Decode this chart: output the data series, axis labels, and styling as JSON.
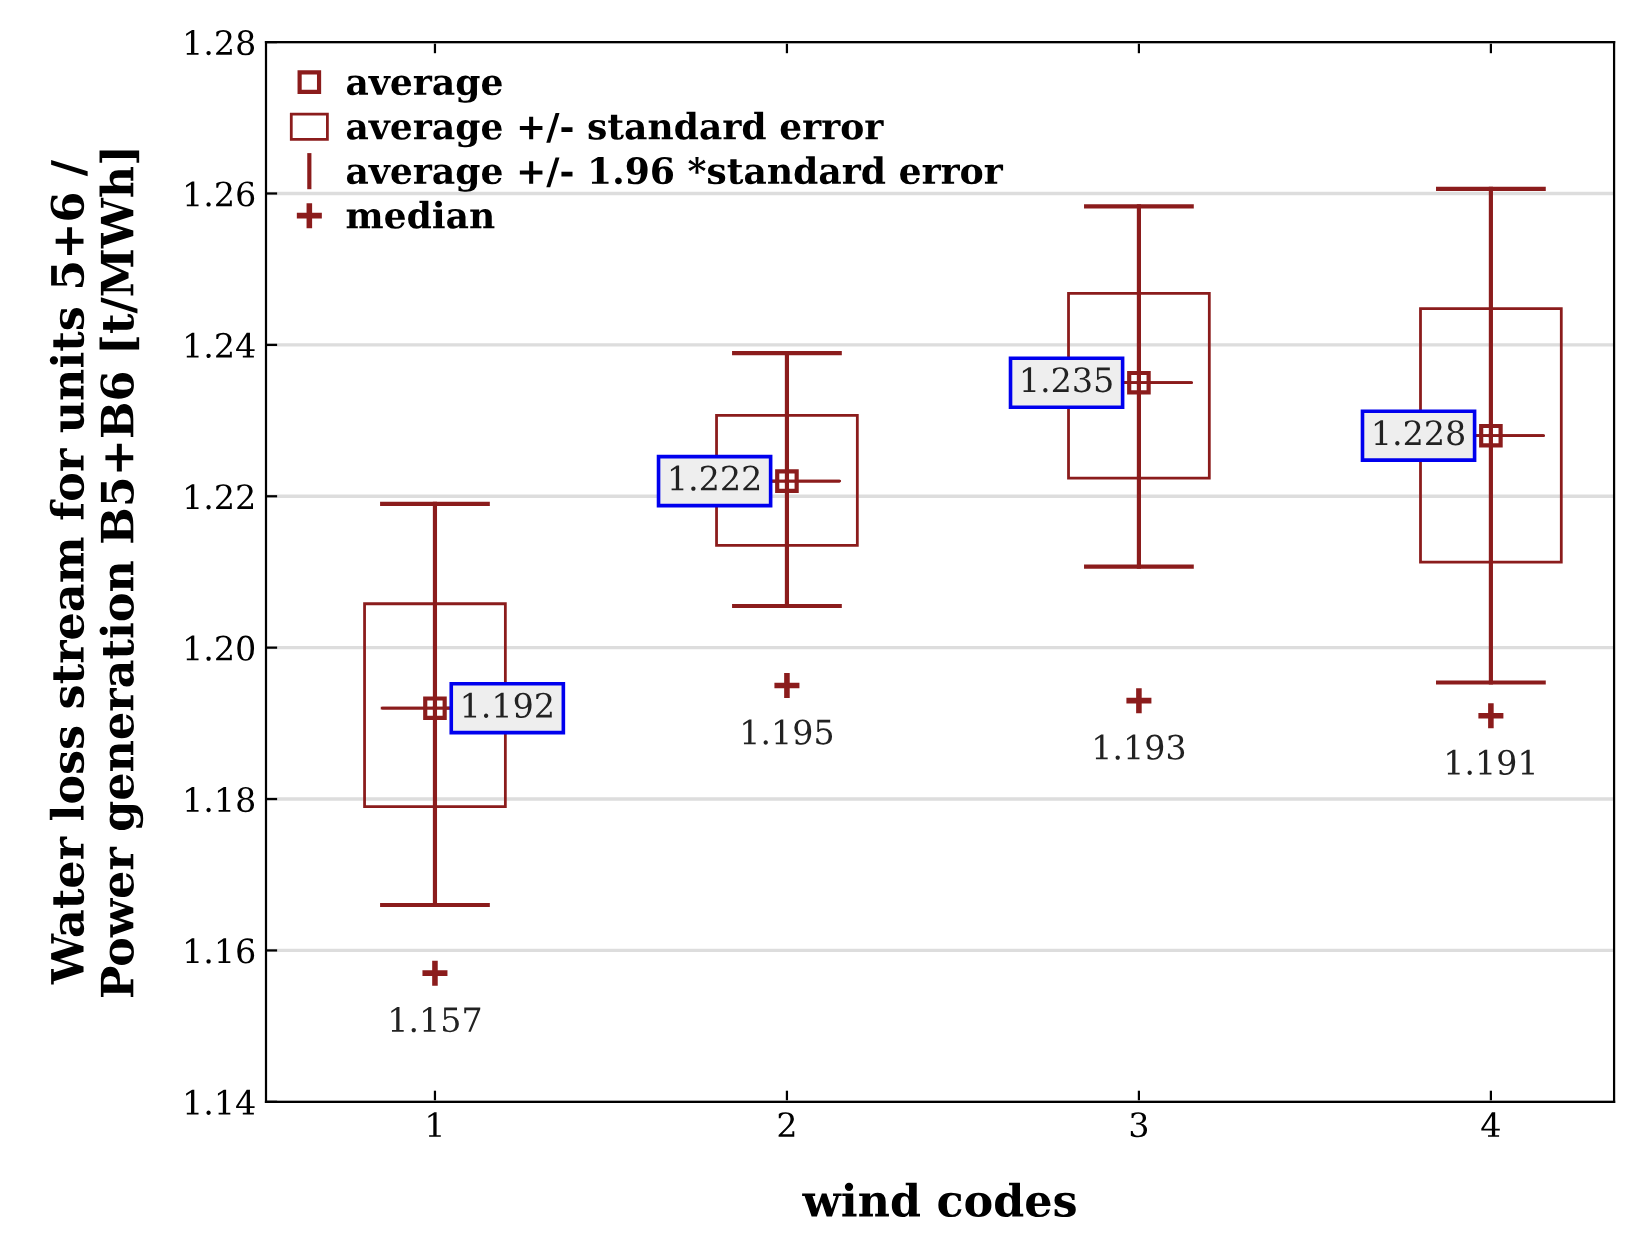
{
  "chart_data": {
    "type": "box",
    "xlabel": "wind codes",
    "ylabel": "Water loss stream for units 5+6 /\nPower generation B5+B6 [t/MWh]",
    "categories": [
      "1",
      "2",
      "3",
      "4"
    ],
    "ylim": [
      1.14,
      1.28
    ],
    "yticks": [
      1.14,
      1.16,
      1.18,
      {
        "value": 1.2,
        "label": "1.20"
      },
      1.22,
      1.24,
      1.26,
      1.28
    ],
    "grid": "y",
    "legend": "top left",
    "series": [
      {
        "name": "average",
        "type": "scatter",
        "marker": "square",
        "color": "#8b1c1c",
        "values": [
          1.192,
          1.222,
          1.235,
          1.228
        ],
        "value_labels": [
          "1.192",
          "1.222",
          "1.235",
          "1.228"
        ]
      },
      {
        "name": "average +/- standard error",
        "type": "bar",
        "color": "#8b1c1c",
        "base": [
          1.179,
          1.2135,
          1.2224,
          1.2113
        ],
        "values": [
          0.0268,
          0.0172,
          0.0244,
          0.0335
        ]
      },
      {
        "name": "average +/- 1.96 *standard error",
        "color": "#8b1c1c",
        "boxes": [
          {
            "low": 1.166,
            "q1": 1.192,
            "median": 1.192,
            "q3": 1.192,
            "high": 1.219
          },
          {
            "low": 1.2055,
            "q1": 1.222,
            "median": 1.222,
            "q3": 1.222,
            "high": 1.2389
          },
          {
            "low": 1.2107,
            "q1": 1.235,
            "median": 1.235,
            "q3": 1.235,
            "high": 1.2583
          },
          {
            "low": 1.1954,
            "q1": 1.228,
            "median": 1.228,
            "q3": 1.228,
            "high": 1.2606
          }
        ]
      },
      {
        "name": "median",
        "type": "scatter",
        "marker": "cross",
        "color": "#8b1c1c",
        "values": [
          1.157,
          1.195,
          1.193,
          1.191
        ],
        "value_labels": [
          "1.157",
          "1.195",
          "1.193",
          "1.191"
        ]
      }
    ]
  }
}
